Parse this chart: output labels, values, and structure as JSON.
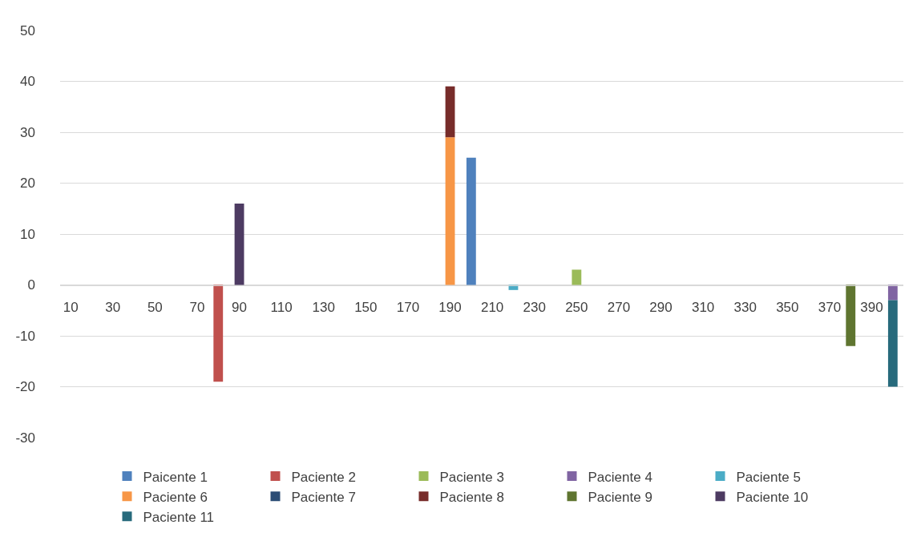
{
  "chart_data": {
    "type": "bar",
    "stacked": true,
    "categories": [
      "10",
      null,
      "30",
      null,
      "50",
      null,
      "70",
      null,
      "90",
      null,
      "110",
      null,
      "130",
      null,
      "150",
      null,
      "170",
      null,
      "190",
      null,
      "210",
      null,
      "230",
      null,
      "250",
      null,
      "270",
      null,
      "290",
      null,
      "310",
      null,
      "330",
      null,
      "350",
      null,
      "370",
      null,
      "390",
      null
    ],
    "series": [
      {
        "name": "Paicente 1",
        "color": "#4f81bd",
        "values": [
          null,
          null,
          null,
          null,
          null,
          null,
          null,
          null,
          null,
          null,
          null,
          null,
          null,
          null,
          null,
          null,
          null,
          null,
          null,
          25,
          null,
          null,
          null,
          null,
          null,
          null,
          null,
          null,
          null,
          null,
          null,
          null,
          null,
          null,
          null,
          null,
          null,
          null,
          null,
          null
        ]
      },
      {
        "name": "Paciente 2",
        "color": "#c0504d",
        "values": [
          null,
          null,
          null,
          null,
          null,
          null,
          null,
          -19,
          null,
          null,
          null,
          null,
          null,
          null,
          null,
          null,
          null,
          null,
          null,
          null,
          null,
          null,
          null,
          null,
          null,
          null,
          null,
          null,
          null,
          null,
          null,
          null,
          null,
          null,
          null,
          null,
          null,
          null,
          null,
          null
        ]
      },
      {
        "name": "Paciente 3",
        "color": "#9bbb59",
        "values": [
          null,
          null,
          null,
          null,
          null,
          null,
          null,
          null,
          null,
          null,
          null,
          null,
          null,
          null,
          null,
          null,
          null,
          null,
          null,
          null,
          null,
          null,
          null,
          null,
          3,
          null,
          null,
          null,
          null,
          null,
          null,
          null,
          null,
          null,
          null,
          null,
          null,
          null,
          null,
          null
        ]
      },
      {
        "name": "Paciente 4",
        "color": "#8064a2",
        "values": [
          null,
          null,
          null,
          null,
          null,
          null,
          null,
          null,
          null,
          null,
          null,
          null,
          null,
          null,
          null,
          null,
          null,
          null,
          null,
          null,
          null,
          null,
          null,
          null,
          null,
          null,
          null,
          null,
          null,
          null,
          null,
          null,
          null,
          null,
          null,
          null,
          null,
          null,
          null,
          -3
        ]
      },
      {
        "name": "Paciente 5",
        "color": "#4bacc6",
        "values": [
          null,
          null,
          null,
          null,
          null,
          null,
          null,
          null,
          null,
          null,
          null,
          null,
          null,
          null,
          null,
          null,
          null,
          null,
          null,
          null,
          null,
          -1,
          null,
          null,
          null,
          null,
          null,
          null,
          null,
          null,
          null,
          null,
          null,
          null,
          null,
          null,
          null,
          null,
          null,
          null
        ]
      },
      {
        "name": "Paciente 6",
        "color": "#f79646",
        "values": [
          null,
          null,
          null,
          null,
          null,
          null,
          null,
          null,
          null,
          null,
          null,
          null,
          null,
          null,
          null,
          null,
          null,
          null,
          29,
          null,
          null,
          null,
          null,
          null,
          null,
          null,
          null,
          null,
          null,
          null,
          null,
          null,
          null,
          null,
          null,
          null,
          null,
          null,
          null,
          null
        ]
      },
      {
        "name": "Paciente 7",
        "color": "#2c4d75",
        "values": [
          null,
          null,
          null,
          null,
          null,
          null,
          null,
          null,
          null,
          null,
          null,
          null,
          null,
          null,
          null,
          null,
          null,
          null,
          null,
          null,
          null,
          null,
          null,
          null,
          null,
          null,
          null,
          null,
          null,
          null,
          null,
          null,
          null,
          null,
          null,
          null,
          null,
          null,
          null,
          null
        ]
      },
      {
        "name": "Paciente 8",
        "color": "#772c2a",
        "values": [
          null,
          null,
          null,
          null,
          null,
          null,
          null,
          null,
          null,
          null,
          null,
          null,
          null,
          null,
          null,
          null,
          null,
          null,
          10,
          null,
          null,
          null,
          null,
          null,
          null,
          null,
          null,
          null,
          null,
          null,
          null,
          null,
          null,
          null,
          null,
          null,
          null,
          null,
          null,
          null
        ]
      },
      {
        "name": "Paciente 9",
        "color": "#5f7530",
        "values": [
          null,
          null,
          null,
          null,
          null,
          null,
          null,
          null,
          null,
          null,
          null,
          null,
          null,
          null,
          null,
          null,
          null,
          null,
          null,
          null,
          null,
          null,
          null,
          null,
          null,
          null,
          null,
          null,
          null,
          null,
          null,
          null,
          null,
          null,
          null,
          null,
          null,
          -12,
          null,
          null
        ]
      },
      {
        "name": "Paciente 10",
        "color": "#4d3b62",
        "values": [
          null,
          null,
          null,
          null,
          null,
          null,
          null,
          null,
          16,
          null,
          null,
          null,
          null,
          null,
          null,
          null,
          null,
          null,
          null,
          null,
          null,
          null,
          null,
          null,
          null,
          null,
          null,
          null,
          null,
          null,
          null,
          null,
          null,
          null,
          null,
          null,
          null,
          null,
          null,
          null
        ]
      },
      {
        "name": "Paciente 11",
        "color": "#276a7c",
        "values": [
          null,
          null,
          null,
          null,
          null,
          null,
          null,
          null,
          null,
          null,
          null,
          null,
          null,
          null,
          null,
          null,
          null,
          null,
          null,
          null,
          null,
          null,
          null,
          null,
          null,
          null,
          null,
          null,
          null,
          null,
          null,
          null,
          null,
          null,
          null,
          null,
          null,
          null,
          null,
          -17
        ]
      }
    ],
    "ylim": [
      -30,
      50
    ],
    "yticks": [
      -30,
      -20,
      -10,
      0,
      10,
      20,
      30,
      40,
      50
    ],
    "grid": "y",
    "legend": "bottom"
  }
}
